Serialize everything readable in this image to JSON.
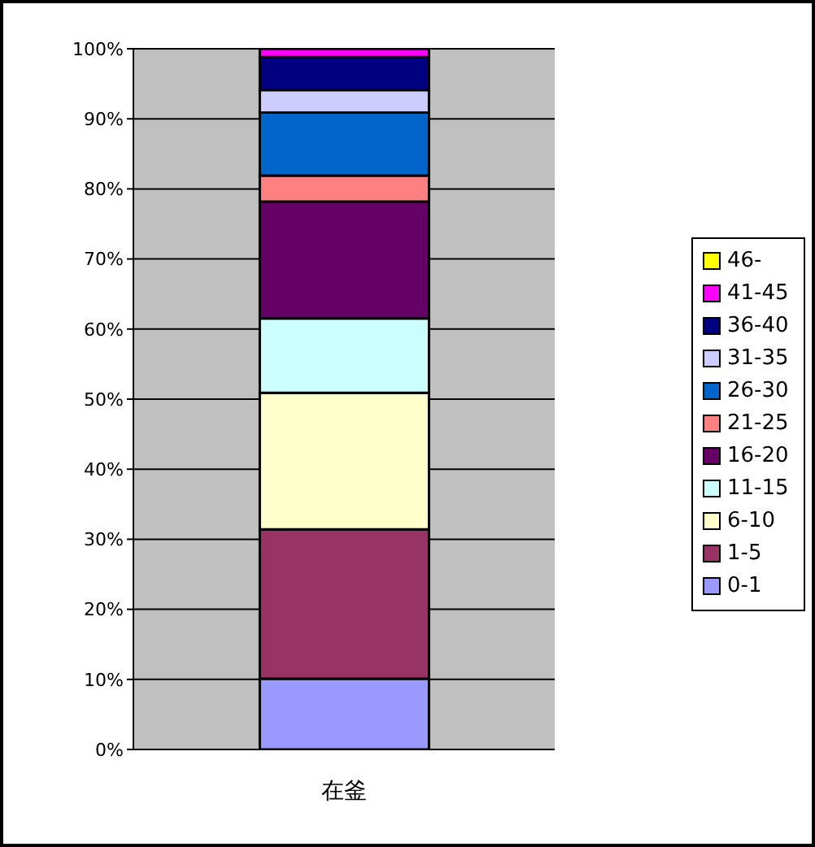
{
  "chart_data": {
    "type": "bar",
    "stacked": true,
    "categories": [
      "在釜"
    ],
    "series": [
      {
        "name": "0-1",
        "color": "#9999ff",
        "values": [
          10.1
        ]
      },
      {
        "name": "1-5",
        "color": "#993366",
        "values": [
          21.3
        ]
      },
      {
        "name": "6-10",
        "color": "#ffffcc",
        "values": [
          19.5
        ]
      },
      {
        "name": "11-15",
        "color": "#ccffff",
        "values": [
          10.6
        ]
      },
      {
        "name": "16-20",
        "color": "#660066",
        "values": [
          16.7
        ]
      },
      {
        "name": "21-25",
        "color": "#ff8080",
        "values": [
          3.7
        ]
      },
      {
        "name": "26-30",
        "color": "#0066cc",
        "values": [
          9.0
        ]
      },
      {
        "name": "31-35",
        "color": "#ccccff",
        "values": [
          3.2
        ]
      },
      {
        "name": "36-40",
        "color": "#000080",
        "values": [
          4.7
        ]
      },
      {
        "name": "41-45",
        "color": "#ff00ff",
        "values": [
          1.2
        ]
      },
      {
        "name": "46-",
        "color": "#ffff00",
        "values": [
          0
        ]
      }
    ],
    "ylim": [
      0,
      100
    ],
    "yticks": [
      {
        "value": 0,
        "label": "0%"
      },
      {
        "value": 10,
        "label": "10%"
      },
      {
        "value": 20,
        "label": "20%"
      },
      {
        "value": 30,
        "label": "30%"
      },
      {
        "value": 40,
        "label": "40%"
      },
      {
        "value": 50,
        "label": "50%"
      },
      {
        "value": 60,
        "label": "60%"
      },
      {
        "value": 70,
        "label": "70%"
      },
      {
        "value": 80,
        "label": "80%"
      },
      {
        "value": 90,
        "label": "90%"
      },
      {
        "value": 100,
        "label": "100%"
      }
    ],
    "grid": "y",
    "legend": "right"
  }
}
